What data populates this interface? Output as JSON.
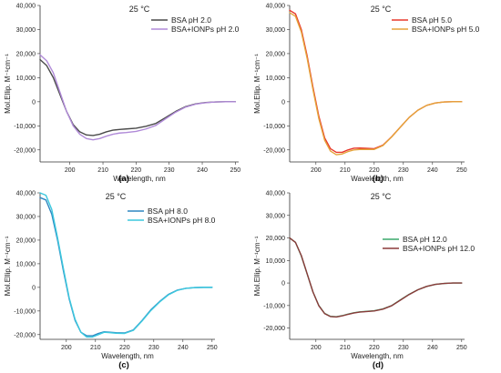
{
  "chart_data": [
    {
      "type": "line",
      "caption": "(a)",
      "title": "25 °C",
      "xlabel": "Wavelength, nm",
      "ylabel": "Mol.Ellip. M⁻¹cm⁻¹",
      "xlim": [
        191,
        251
      ],
      "ylim": [
        -25000,
        40000
      ],
      "xticks": [
        200,
        210,
        220,
        230,
        240,
        250
      ],
      "xtick_labels": [
        "200",
        "210",
        "220",
        "230",
        "240",
        "250"
      ],
      "yticks": [
        -20000,
        -10000,
        0,
        10000,
        20000,
        30000,
        40000
      ],
      "ytick_labels": [
        "-20,000",
        "-10,000",
        "0",
        "10,000",
        "20,000",
        "30,000",
        "40,000"
      ],
      "legend_position": "top-right",
      "series": [
        {
          "name": "BSA pH 2.0",
          "color": "#4a4a4a",
          "x": [
            191,
            193,
            195,
            197,
            199,
            201,
            203,
            205,
            207,
            209,
            211,
            213,
            215,
            217,
            220,
            223,
            226,
            229,
            232,
            235,
            238,
            241,
            244,
            247,
            250
          ],
          "y": [
            17500,
            15000,
            10000,
            3000,
            -4000,
            -9500,
            -12500,
            -13800,
            -14000,
            -13500,
            -12500,
            -11800,
            -11500,
            -11300,
            -11000,
            -10200,
            -9000,
            -6500,
            -4000,
            -2000,
            -900,
            -300,
            -100,
            0,
            0
          ]
        },
        {
          "name": "BSA+IONPs pH 2.0",
          "color": "#b08ad8",
          "x": [
            191,
            193,
            195,
            197,
            199,
            201,
            203,
            205,
            207,
            209,
            211,
            213,
            215,
            217,
            220,
            223,
            226,
            229,
            232,
            235,
            238,
            241,
            244,
            247,
            250
          ],
          "y": [
            19500,
            17000,
            12000,
            4000,
            -4000,
            -10000,
            -13500,
            -15300,
            -15800,
            -15300,
            -14300,
            -13500,
            -13000,
            -12800,
            -12300,
            -11300,
            -9800,
            -7000,
            -4300,
            -2200,
            -1000,
            -400,
            -100,
            0,
            0
          ]
        }
      ]
    },
    {
      "type": "line",
      "caption": "(b)",
      "title": "25 °C",
      "xlabel": "Wavelength, nm",
      "ylabel": "Mol.Ellip. M⁻¹cm⁻¹",
      "xlim": [
        191,
        251
      ],
      "ylim": [
        -25000,
        40000
      ],
      "xticks": [
        200,
        210,
        220,
        230,
        240,
        250
      ],
      "xtick_labels": [
        "200",
        "210",
        "220",
        "230",
        "240",
        "250"
      ],
      "yticks": [
        -20000,
        -10000,
        0,
        10000,
        20000,
        30000,
        40000
      ],
      "ytick_labels": [
        "-20,000",
        "-10,000",
        "0",
        "10,000",
        "20,000",
        "30,000",
        "40,000"
      ],
      "legend_position": "top-right",
      "series": [
        {
          "name": "BSA pH 5.0",
          "color": "#e8382c",
          "x": [
            191,
            193,
            195,
            197,
            199,
            201,
            203,
            205,
            207,
            209,
            211,
            213,
            215,
            217,
            220,
            223,
            226,
            229,
            232,
            235,
            238,
            241,
            244,
            247,
            250
          ],
          "y": [
            38000,
            36500,
            30000,
            19000,
            6000,
            -6000,
            -15000,
            -19500,
            -21000,
            -21000,
            -20000,
            -19300,
            -19200,
            -19300,
            -19500,
            -18000,
            -14500,
            -10500,
            -6500,
            -3500,
            -1500,
            -500,
            -100,
            0,
            0
          ]
        },
        {
          "name": "BSA+IONPs pH 5.0",
          "color": "#e5a43a",
          "x": [
            191,
            193,
            195,
            197,
            199,
            201,
            203,
            205,
            207,
            209,
            211,
            213,
            215,
            217,
            220,
            223,
            226,
            229,
            232,
            235,
            238,
            241,
            244,
            247,
            250
          ],
          "y": [
            37000,
            35500,
            29000,
            18000,
            5000,
            -7000,
            -16000,
            -20500,
            -22000,
            -21700,
            -20700,
            -20000,
            -19800,
            -19800,
            -19800,
            -18200,
            -14600,
            -10500,
            -6500,
            -3500,
            -1500,
            -500,
            -100,
            0,
            0
          ]
        }
      ]
    },
    {
      "type": "line",
      "caption": "(c)",
      "title": "25 °C",
      "xlabel": "Wavelength, nm",
      "ylabel": "Mol.Ellip. M⁻¹cm⁻¹",
      "xlim": [
        191,
        251
      ],
      "ylim": [
        -22000,
        40000
      ],
      "xticks": [
        200,
        210,
        220,
        230,
        240,
        250
      ],
      "xtick_labels": [
        "200",
        "210",
        "220",
        "230",
        "240",
        "250"
      ],
      "yticks": [
        -20000,
        -10000,
        0,
        10000,
        20000,
        30000,
        40000
      ],
      "ytick_labels": [
        "-20,000",
        "-10,000",
        "0",
        "10,000",
        "20,000",
        "30,000",
        "40,000"
      ],
      "legend_position": "top-right",
      "series": [
        {
          "name": "BSA pH 8.0",
          "color": "#2e86c1",
          "x": [
            191,
            193,
            195,
            197,
            199,
            201,
            203,
            205,
            207,
            209,
            211,
            213,
            215,
            217,
            220,
            223,
            226,
            229,
            232,
            235,
            238,
            241,
            244,
            247,
            250
          ],
          "y": [
            38000,
            37000,
            31000,
            20000,
            7000,
            -5000,
            -14000,
            -19000,
            -20500,
            -20500,
            -19500,
            -18800,
            -19000,
            -19200,
            -19300,
            -18000,
            -14000,
            -9500,
            -6000,
            -3000,
            -1200,
            -400,
            -100,
            0,
            0
          ]
        },
        {
          "name": "BSA+IONPs pH 8.0",
          "color": "#3cc8de",
          "x": [
            191,
            193,
            195,
            197,
            199,
            201,
            203,
            205,
            207,
            209,
            211,
            213,
            215,
            217,
            220,
            223,
            226,
            229,
            232,
            235,
            238,
            241,
            244,
            247,
            250
          ],
          "y": [
            40000,
            39000,
            33000,
            21000,
            8000,
            -4500,
            -13500,
            -19000,
            -21000,
            -21000,
            -20000,
            -19000,
            -19200,
            -19400,
            -19500,
            -18200,
            -14200,
            -9800,
            -6200,
            -3200,
            -1300,
            -400,
            -100,
            0,
            0
          ]
        }
      ]
    },
    {
      "type": "line",
      "caption": "(d)",
      "title": "25 °C",
      "xlabel": "Wavelength, nm",
      "ylabel": "Mol.Ellip. M⁻¹cm⁻¹",
      "xlim": [
        191,
        251
      ],
      "ylim": [
        -25000,
        40000
      ],
      "xticks": [
        200,
        210,
        220,
        230,
        240,
        250
      ],
      "xtick_labels": [
        "200",
        "210",
        "220",
        "230",
        "240",
        "250"
      ],
      "yticks": [
        -20000,
        -10000,
        0,
        10000,
        20000,
        30000,
        40000
      ],
      "ytick_labels": [
        "-20,000",
        "-10,000",
        "0",
        "10,000",
        "20,000",
        "30,000",
        "40,000"
      ],
      "legend_position": "center-right",
      "series": [
        {
          "name": "BSA pH 12.0",
          "color": "#3aa86b",
          "x": [
            191,
            193,
            195,
            197,
            199,
            201,
            203,
            205,
            207,
            209,
            211,
            213,
            215,
            217,
            220,
            223,
            226,
            229,
            232,
            235,
            238,
            241,
            244,
            247,
            250
          ],
          "y": [
            20000,
            18000,
            12000,
            4000,
            -4000,
            -10000,
            -13500,
            -14800,
            -15000,
            -14500,
            -13800,
            -13200,
            -12800,
            -12600,
            -12300,
            -11500,
            -10000,
            -7500,
            -5000,
            -3000,
            -1500,
            -600,
            -200,
            0,
            0
          ]
        },
        {
          "name": "BSA+IONPs pH 12.0",
          "color": "#8b3a3a",
          "x": [
            191,
            193,
            195,
            197,
            199,
            201,
            203,
            205,
            207,
            209,
            211,
            213,
            215,
            217,
            220,
            223,
            226,
            229,
            232,
            235,
            238,
            241,
            244,
            247,
            250
          ],
          "y": [
            20000,
            18000,
            12200,
            4100,
            -4000,
            -10100,
            -13600,
            -14900,
            -15100,
            -14600,
            -13900,
            -13300,
            -12900,
            -12700,
            -12400,
            -11600,
            -10100,
            -7600,
            -5100,
            -3000,
            -1500,
            -600,
            -200,
            0,
            0
          ]
        }
      ]
    }
  ]
}
